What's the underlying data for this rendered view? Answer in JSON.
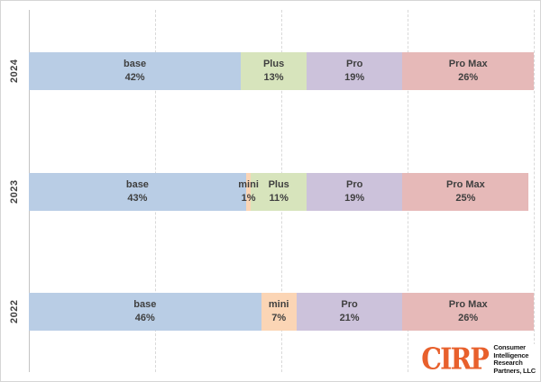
{
  "chart_data": {
    "type": "bar",
    "orientation": "horizontal",
    "stacked": true,
    "title": "",
    "xlabel": "",
    "ylabel": "",
    "categories": [
      "2024",
      "2023",
      "2022"
    ],
    "series": [
      {
        "name": "base",
        "color": "#B9CDE5",
        "values": [
          42,
          43,
          46
        ]
      },
      {
        "name": "mini",
        "color": "#FBD5B5",
        "values": [
          0,
          1,
          7
        ]
      },
      {
        "name": "Plus",
        "color": "#D7E4BC",
        "values": [
          13,
          11,
          0
        ]
      },
      {
        "name": "Pro",
        "color": "#CCC2DB",
        "values": [
          19,
          19,
          21
        ]
      },
      {
        "name": "Pro Max",
        "color": "#E6B9B8",
        "values": [
          26,
          25,
          26
        ]
      }
    ],
    "value_suffix": "%",
    "xlim": [
      0,
      100
    ],
    "gridlines_percent": [
      25,
      50,
      75,
      100
    ],
    "grid_style": "dashed",
    "legend": "none",
    "label_format": "name_newline_percent"
  },
  "styles": {
    "grid_color": "#D9D9D9",
    "axis_color": "#C3C3C3",
    "label_text_color": "#3F3F3F"
  },
  "logo": {
    "brand": "CIRP",
    "brand_color": "#E8602C",
    "lines": [
      "Consumer",
      "Intelligence",
      "Research",
      "Partners, LLC"
    ]
  }
}
